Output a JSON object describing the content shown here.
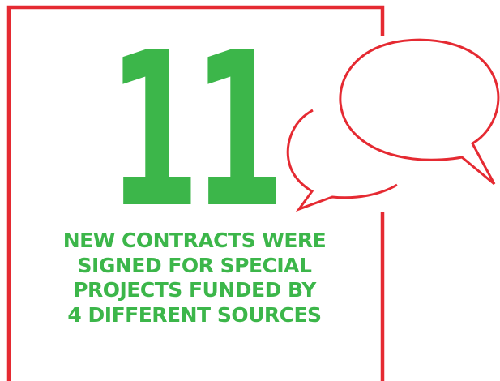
{
  "stat": {
    "number": "11",
    "caption_lines": [
      "NEW CONTRACTS WERE",
      "SIGNED FOR SPECIAL",
      "PROJECTS FUNDED BY",
      "4 DIFFERENT SOURCES"
    ]
  },
  "colors": {
    "accent_green": "#3cb64a",
    "frame_red": "#e52a32",
    "background": "#ffffff"
  },
  "icons": [
    "speech-bubbles-icon"
  ]
}
